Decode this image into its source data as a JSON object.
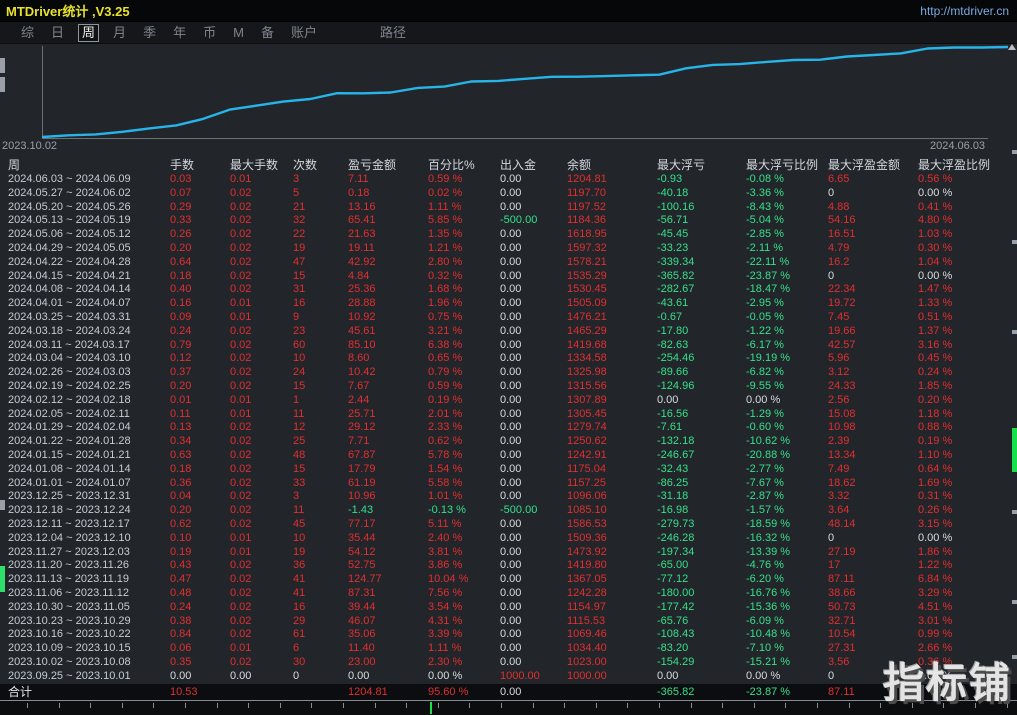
{
  "window": {
    "title": "MTDriver统计 ,V3.25",
    "url": "http://mtdriver.cn"
  },
  "menu": {
    "items": [
      "综",
      "日",
      "周",
      "月",
      "季",
      "年",
      "币",
      "M",
      "备",
      "账户",
      "路径"
    ],
    "selected": "周"
  },
  "chart": {
    "start_label": "2023.10.02",
    "end_label": "2024.06.03"
  },
  "chart_data": {
    "type": "line",
    "title": "累计盈亏曲线",
    "x_start": "2023.10.02",
    "x_end": "2024.06.03",
    "ylim": [
      0,
      1204.81
    ],
    "legend": [],
    "grid": false,
    "values": [
      0,
      23.0,
      34.4,
      69.46,
      115.53,
      154.97,
      242.28,
      367.05,
      419.8,
      473.92,
      509.36,
      586.53,
      585.1,
      596.06,
      657.25,
      675.04,
      742.91,
      750.62,
      779.74,
      805.45,
      807.89,
      815.56,
      825.98,
      834.58,
      919.68,
      965.29,
      976.21,
      1005.09,
      1030.45,
      1035.29,
      1078.21,
      1097.32,
      1118.95,
      1184.36,
      1197.52,
      1197.7,
      1204.81
    ]
  },
  "table": {
    "columns": [
      "周",
      "手数",
      "最大手数",
      "次数",
      "盈亏金额",
      "百分比%",
      "出入金",
      "余额",
      "最大浮亏",
      "最大浮亏比例",
      "最大浮盈金额",
      "最大浮盈比例"
    ],
    "rows": [
      [
        "2024.06.03 ~ 2024.06.09",
        "0.03",
        "0.01",
        "3",
        "7.11",
        "0.59 %",
        "0.00",
        "1204.81",
        "-0.93",
        "-0.08 %",
        "6.65",
        "0.56 %"
      ],
      [
        "2024.05.27 ~ 2024.06.02",
        "0.07",
        "0.02",
        "5",
        "0.18",
        "0.02 %",
        "0.00",
        "1197.70",
        "-40.18",
        "-3.36 %",
        "0",
        "0.00 %"
      ],
      [
        "2024.05.20 ~ 2024.05.26",
        "0.29",
        "0.02",
        "21",
        "13.16",
        "1.11 %",
        "0.00",
        "1197.52",
        "-100.16",
        "-8.43 %",
        "4.88",
        "0.41 %"
      ],
      [
        "2024.05.13 ~ 2024.05.19",
        "0.33",
        "0.02",
        "32",
        "65.41",
        "5.85 %",
        "-500.00",
        "1184.36",
        "-56.71",
        "-5.04 %",
        "54.16",
        "4.80 %"
      ],
      [
        "2024.05.06 ~ 2024.05.12",
        "0.26",
        "0.02",
        "22",
        "21.63",
        "1.35 %",
        "0.00",
        "1618.95",
        "-45.45",
        "-2.85 %",
        "16.51",
        "1.03 %"
      ],
      [
        "2024.04.29 ~ 2024.05.05",
        "0.20",
        "0.02",
        "19",
        "19.11",
        "1.21 %",
        "0.00",
        "1597.32",
        "-33.23",
        "-2.11 %",
        "4.79",
        "0.30 %"
      ],
      [
        "2024.04.22 ~ 2024.04.28",
        "0.64",
        "0.02",
        "47",
        "42.92",
        "2.80 %",
        "0.00",
        "1578.21",
        "-339.34",
        "-22.11 %",
        "16.2",
        "1.04 %"
      ],
      [
        "2024.04.15 ~ 2024.04.21",
        "0.18",
        "0.02",
        "15",
        "4.84",
        "0.32 %",
        "0.00",
        "1535.29",
        "-365.82",
        "-23.87 %",
        "0",
        "0.00 %"
      ],
      [
        "2024.04.08 ~ 2024.04.14",
        "0.40",
        "0.02",
        "31",
        "25.36",
        "1.68 %",
        "0.00",
        "1530.45",
        "-282.67",
        "-18.47 %",
        "22.34",
        "1.47 %"
      ],
      [
        "2024.04.01 ~ 2024.04.07",
        "0.16",
        "0.01",
        "16",
        "28.88",
        "1.96 %",
        "0.00",
        "1505.09",
        "-43.61",
        "-2.95 %",
        "19.72",
        "1.33 %"
      ],
      [
        "2024.03.25 ~ 2024.03.31",
        "0.09",
        "0.01",
        "9",
        "10.92",
        "0.75 %",
        "0.00",
        "1476.21",
        "-0.67",
        "-0.05 %",
        "7.45",
        "0.51 %"
      ],
      [
        "2024.03.18 ~ 2024.03.24",
        "0.24",
        "0.02",
        "23",
        "45.61",
        "3.21 %",
        "0.00",
        "1465.29",
        "-17.80",
        "-1.22 %",
        "19.66",
        "1.37 %"
      ],
      [
        "2024.03.11 ~ 2024.03.17",
        "0.79",
        "0.02",
        "60",
        "85.10",
        "6.38 %",
        "0.00",
        "1419.68",
        "-82.63",
        "-6.17 %",
        "42.57",
        "3.16 %"
      ],
      [
        "2024.03.04 ~ 2024.03.10",
        "0.12",
        "0.02",
        "10",
        "8.60",
        "0.65 %",
        "0.00",
        "1334.58",
        "-254.46",
        "-19.19 %",
        "5.96",
        "0.45 %"
      ],
      [
        "2024.02.26 ~ 2024.03.03",
        "0.37",
        "0.02",
        "24",
        "10.42",
        "0.79 %",
        "0.00",
        "1325.98",
        "-89.66",
        "-6.82 %",
        "3.12",
        "0.24 %"
      ],
      [
        "2024.02.19 ~ 2024.02.25",
        "0.20",
        "0.02",
        "15",
        "7.67",
        "0.59 %",
        "0.00",
        "1315.56",
        "-124.96",
        "-9.55 %",
        "24.33",
        "1.85 %"
      ],
      [
        "2024.02.12 ~ 2024.02.18",
        "0.01",
        "0.01",
        "1",
        "2.44",
        "0.19 %",
        "0.00",
        "1307.89",
        "0.00",
        "0.00 %",
        "2.56",
        "0.20 %"
      ],
      [
        "2024.02.05 ~ 2024.02.11",
        "0.11",
        "0.01",
        "11",
        "25.71",
        "2.01 %",
        "0.00",
        "1305.45",
        "-16.56",
        "-1.29 %",
        "15.08",
        "1.18 %"
      ],
      [
        "2024.01.29 ~ 2024.02.04",
        "0.13",
        "0.02",
        "12",
        "29.12",
        "2.33 %",
        "0.00",
        "1279.74",
        "-7.61",
        "-0.60 %",
        "10.98",
        "0.88 %"
      ],
      [
        "2024.01.22 ~ 2024.01.28",
        "0.34",
        "0.02",
        "25",
        "7.71",
        "0.62 %",
        "0.00",
        "1250.62",
        "-132.18",
        "-10.62 %",
        "2.39",
        "0.19 %"
      ],
      [
        "2024.01.15 ~ 2024.01.21",
        "0.63",
        "0.02",
        "48",
        "67.87",
        "5.78 %",
        "0.00",
        "1242.91",
        "-246.67",
        "-20.88 %",
        "13.34",
        "1.10 %"
      ],
      [
        "2024.01.08 ~ 2024.01.14",
        "0.18",
        "0.02",
        "15",
        "17.79",
        "1.54 %",
        "0.00",
        "1175.04",
        "-32.43",
        "-2.77 %",
        "7.49",
        "0.64 %"
      ],
      [
        "2024.01.01 ~ 2024.01.07",
        "0.36",
        "0.02",
        "33",
        "61.19",
        "5.58 %",
        "0.00",
        "1157.25",
        "-86.25",
        "-7.67 %",
        "18.62",
        "1.69 %"
      ],
      [
        "2023.12.25 ~ 2023.12.31",
        "0.04",
        "0.02",
        "3",
        "10.96",
        "1.01 %",
        "0.00",
        "1096.06",
        "-31.18",
        "-2.87 %",
        "3.32",
        "0.31 %"
      ],
      [
        "2023.12.18 ~ 2023.12.24",
        "0.20",
        "0.02",
        "11",
        "-1.43",
        "-0.13 %",
        "-500.00",
        "1085.10",
        "-16.98",
        "-1.57 %",
        "3.64",
        "0.26 %"
      ],
      [
        "2023.12.11 ~ 2023.12.17",
        "0.62",
        "0.02",
        "45",
        "77.17",
        "5.11 %",
        "0.00",
        "1586.53",
        "-279.73",
        "-18.59 %",
        "48.14",
        "3.15 %"
      ],
      [
        "2023.12.04 ~ 2023.12.10",
        "0.10",
        "0.01",
        "10",
        "35.44",
        "2.40 %",
        "0.00",
        "1509.36",
        "-246.28",
        "-16.32 %",
        "0",
        "0.00 %"
      ],
      [
        "2023.11.27 ~ 2023.12.03",
        "0.19",
        "0.01",
        "19",
        "54.12",
        "3.81 %",
        "0.00",
        "1473.92",
        "-197.34",
        "-13.39 %",
        "27.19",
        "1.86 %"
      ],
      [
        "2023.11.20 ~ 2023.11.26",
        "0.43",
        "0.02",
        "36",
        "52.75",
        "3.86 %",
        "0.00",
        "1419.80",
        "-65.00",
        "-4.76 %",
        "17",
        "1.22 %"
      ],
      [
        "2023.11.13 ~ 2023.11.19",
        "0.47",
        "0.02",
        "41",
        "124.77",
        "10.04 %",
        "0.00",
        "1367.05",
        "-77.12",
        "-6.20 %",
        "87.11",
        "6.84 %"
      ],
      [
        "2023.11.06 ~ 2023.11.12",
        "0.48",
        "0.02",
        "41",
        "87.31",
        "7.56 %",
        "0.00",
        "1242.28",
        "-180.00",
        "-16.76 %",
        "38.66",
        "3.29 %"
      ],
      [
        "2023.10.30 ~ 2023.11.05",
        "0.24",
        "0.02",
        "16",
        "39.44",
        "3.54 %",
        "0.00",
        "1154.97",
        "-177.42",
        "-15.36 %",
        "50.73",
        "4.51 %"
      ],
      [
        "2023.10.23 ~ 2023.10.29",
        "0.38",
        "0.02",
        "29",
        "46.07",
        "4.31 %",
        "0.00",
        "1115.53",
        "-65.76",
        "-6.09 %",
        "32.71",
        "3.01 %"
      ],
      [
        "2023.10.16 ~ 2023.10.22",
        "0.84",
        "0.02",
        "61",
        "35.06",
        "3.39 %",
        "0.00",
        "1069.46",
        "-108.43",
        "-10.48 %",
        "10.54",
        "0.99 %"
      ],
      [
        "2023.10.09 ~ 2023.10.15",
        "0.06",
        "0.01",
        "6",
        "11.40",
        "1.11 %",
        "0.00",
        "1034.40",
        "-83.20",
        "-7.10 %",
        "27.31",
        "2.66 %"
      ],
      [
        "2023.10.02 ~ 2023.10.08",
        "0.35",
        "0.02",
        "30",
        "23.00",
        "2.30 %",
        "0.00",
        "1023.00",
        "-154.29",
        "-15.21 %",
        "3.56",
        "0.36 %"
      ],
      [
        "2023.09.25 ~ 2023.10.01",
        "0.00",
        "0.00",
        "0",
        "0.00",
        "0.00 %",
        "1000.00",
        "1000.00",
        "0.00",
        "0.00 %",
        "0",
        "0.00 %"
      ]
    ],
    "total_row": [
      "合计",
      "10.53",
      "",
      "",
      "1204.81",
      "95.60 %",
      "0.00",
      "",
      "-365.82",
      "-23.87 %",
      "87.11",
      ""
    ]
  },
  "watermark": "指标铺",
  "colors": {
    "positive": "#e03030",
    "negative": "#35e08a",
    "neutral": "#d8dde2",
    "line": "#27b4e8",
    "title": "#e8e22e",
    "url": "#7aa9e0"
  }
}
